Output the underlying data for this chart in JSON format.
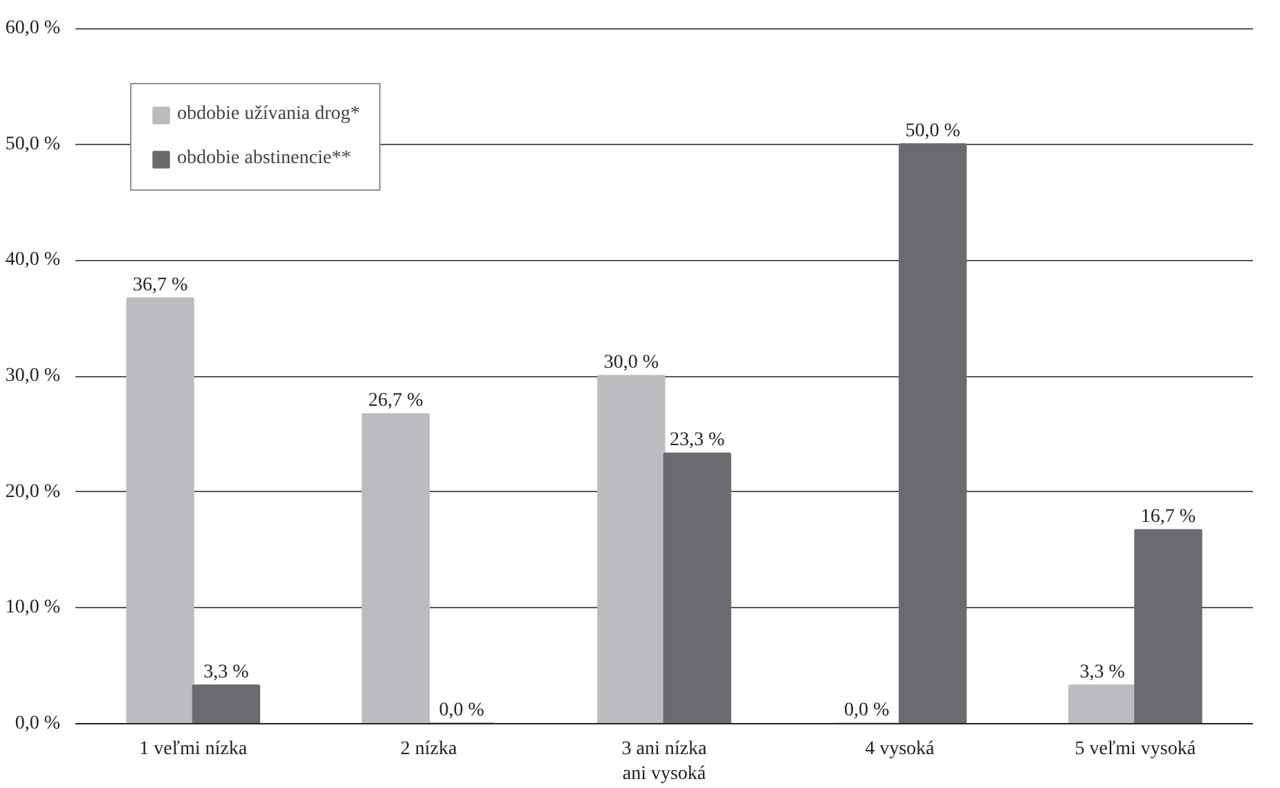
{
  "chart_data": {
    "type": "bar",
    "categories": [
      "1 veľmi nízka",
      "2 nízka",
      "3 ani nízka\nani vysoká",
      "4 vysoká",
      "5 veľmi vysoká"
    ],
    "series": [
      {
        "name": "obdobie užívania drog*",
        "color": "#bcbcc0",
        "values": [
          36.7,
          26.7,
          30.0,
          0.0,
          3.3
        ],
        "value_labels": [
          "36,7 %",
          "26,7 %",
          "30,0 %",
          "0,0 %",
          "3,3 %"
        ]
      },
      {
        "name": "obdobie abstinencie**",
        "color": "#6b6b6f",
        "values": [
          3.3,
          0.0,
          23.3,
          50.0,
          16.7
        ],
        "value_labels": [
          "3,3 %",
          "0,0 %",
          "23,3 %",
          "50,0 %",
          "16,7 %"
        ]
      }
    ],
    "ylim": [
      0,
      60
    ],
    "yticks": [
      {
        "value": 0,
        "label": "0,0 %"
      },
      {
        "value": 10,
        "label": "10,0 %"
      },
      {
        "value": 20,
        "label": "20,0 %"
      },
      {
        "value": 30,
        "label": "30,0 %"
      },
      {
        "value": 40,
        "label": "40,0 %"
      },
      {
        "value": 50,
        "label": "50,0 %"
      },
      {
        "value": 60,
        "label": "60,0 %"
      }
    ],
    "grid": "y",
    "legend": "top left"
  }
}
